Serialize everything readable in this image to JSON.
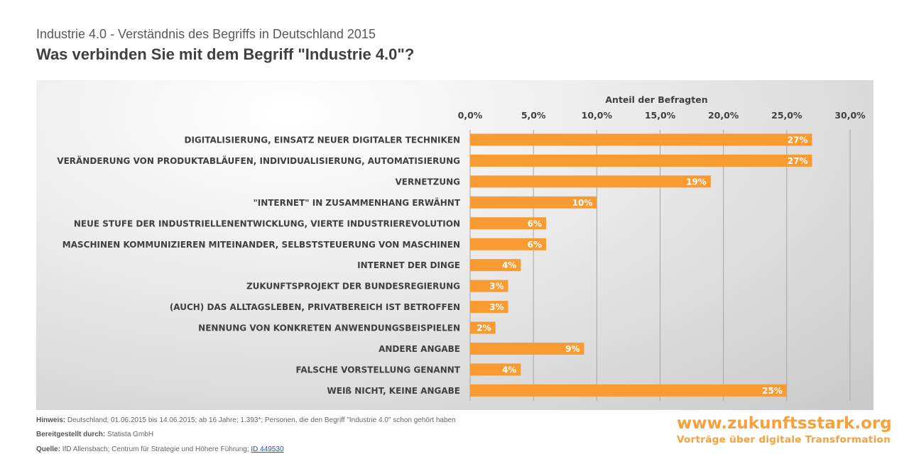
{
  "header": {
    "subtitle": "Industrie 4.0 - Verständnis des Begriffs in Deutschland 2015",
    "title": "Was verbinden Sie mit dem Begriff \"Industrie 4.0\"?"
  },
  "chart_data": {
    "type": "bar",
    "orientation": "horizontal",
    "xlabel": "Anteil der Befragten",
    "xlim": [
      0,
      30
    ],
    "ticks": [
      "0,0%",
      "5,0%",
      "10,0%",
      "15,0%",
      "20,0%",
      "25,0%",
      "30,0%"
    ],
    "tick_values": [
      0,
      5,
      10,
      15,
      20,
      25,
      30
    ],
    "grid": true,
    "bar_color": "#f99b33",
    "categories": [
      "DIGITALISIERUNG, EINSATZ NEUER DIGITALER TECHNIKEN",
      "VERÄNDERUNG VON PRODUKTABLÄUFEN, INDIVIDUALISIERUNG, AUTOMATISIERUNG",
      "VERNETZUNG",
      "\"INTERNET\" IN ZUSAMMENHANG ERWÄHNT",
      "NEUE STUFE DER INDUSTRIELLENENTWICKLUNG, VIERTE INDUSTRIEREVOLUTION",
      "MASCHINEN KOMMUNIZIEREN MITEINANDER, SELBSTSTEUERUNG VON MASCHINEN",
      "INTERNET DER DINGE",
      "ZUKUNFTSPROJEKT DER BUNDESREGIERUNG",
      "(AUCH) DAS ALLTAGSLEBEN, PRIVATBEREICH IST BETROFFEN",
      "NENNUNG VON KONKRETEN ANWENDUNGSBEISPIELEN",
      "ANDERE ANGABE",
      "FALSCHE VORSTELLUNG GENANNT",
      "WEIß NICHT, KEINE ANGABE"
    ],
    "values": [
      27,
      27,
      19,
      10,
      6,
      6,
      4,
      3,
      3,
      2,
      9,
      4,
      25
    ],
    "data_labels": [
      "27%",
      "27%",
      "19%",
      "10%",
      "6%",
      "6%",
      "4%",
      "3%",
      "3%",
      "2%",
      "9%",
      "4%",
      "25%"
    ]
  },
  "footer": {
    "hinweis_label": "Hinweis:",
    "hinweis": "Deutschland; 01.06.2015 bis 14.06.2015; ab 16 Jahre; 1.393*; Personen, die den Begriff \"Industrie 4.0\" schon gehört haben",
    "bereit_label": "Bereitgestellt durch:",
    "bereit": "Statista GmbH",
    "quelle_label": "Quelle:",
    "quelle": "IfD Allensbach; Centrum für Strategie und Höhere Führung;",
    "quelle_link": "ID 449530"
  },
  "brand": {
    "url": "www.zukunftsstark.org",
    "tagline": "Vorträge über digitale Transformation"
  }
}
